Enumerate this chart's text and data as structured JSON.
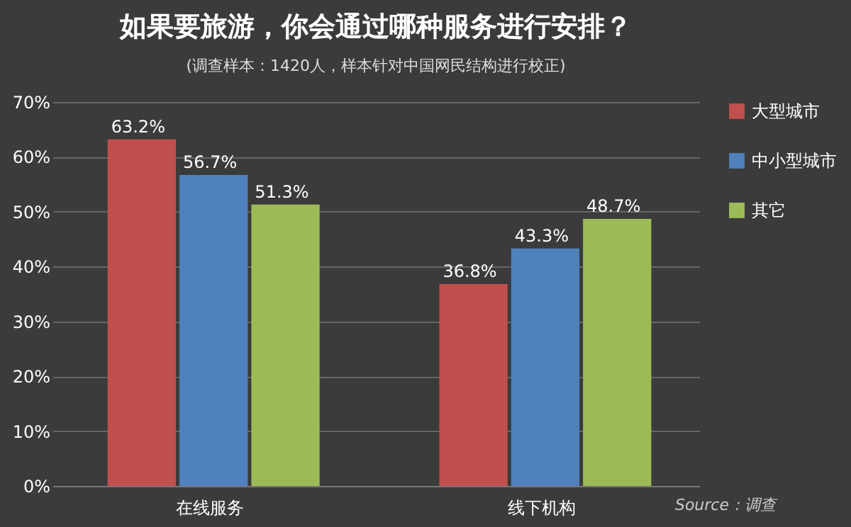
{
  "chart_data": {
    "type": "bar",
    "title": "如果要旅游，你会通过哪种服务进行安排？",
    "subtitle": "(调查样本：1420人，样本针对中国网民结构进行校正)",
    "categories": [
      "在线服务",
      "线下机构"
    ],
    "series": [
      {
        "name": "大型城市",
        "color": "#c0504d",
        "values": [
          63.2,
          36.8
        ],
        "value_labels": [
          "63.2%",
          "36.8%"
        ]
      },
      {
        "name": "中小型城市",
        "color": "#4f81bd",
        "values": [
          56.7,
          43.3
        ],
        "value_labels": [
          "56.7%",
          "43.3%"
        ]
      },
      {
        "name": "其它",
        "color": "#9bbb59",
        "values": [
          51.3,
          48.7
        ],
        "value_labels": [
          "51.3%",
          "48.7%"
        ]
      }
    ],
    "ylim": [
      0,
      70
    ],
    "yticks": [
      {
        "value": 0,
        "label": "0%"
      },
      {
        "value": 10,
        "label": "10%"
      },
      {
        "value": 20,
        "label": "20%"
      },
      {
        "value": 30,
        "label": "30%"
      },
      {
        "value": 40,
        "label": "40%"
      },
      {
        "value": 50,
        "label": "50%"
      },
      {
        "value": 60,
        "label": "60%"
      },
      {
        "value": 70,
        "label": "70%"
      }
    ],
    "grid": "y",
    "legend": "right",
    "annotations": [
      "Source：调查"
    ]
  }
}
